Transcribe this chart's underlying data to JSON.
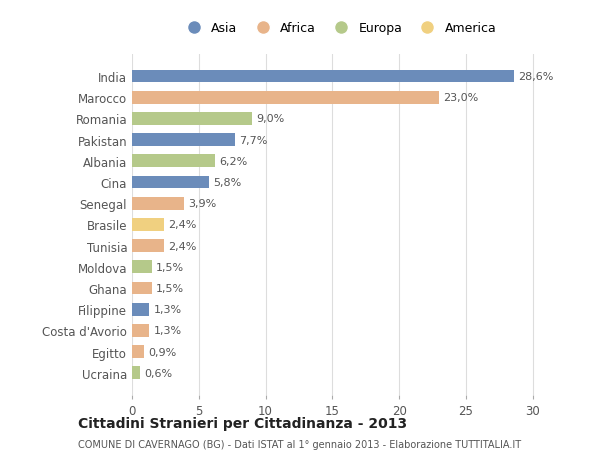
{
  "categories": [
    "India",
    "Marocco",
    "Romania",
    "Pakistan",
    "Albania",
    "Cina",
    "Senegal",
    "Brasile",
    "Tunisia",
    "Moldova",
    "Ghana",
    "Filippine",
    "Costa d'Avorio",
    "Egitto",
    "Ucraina"
  ],
  "values": [
    28.6,
    23.0,
    9.0,
    7.7,
    6.2,
    5.8,
    3.9,
    2.4,
    2.4,
    1.5,
    1.5,
    1.3,
    1.3,
    0.9,
    0.6
  ],
  "labels": [
    "28,6%",
    "23,0%",
    "9,0%",
    "7,7%",
    "6,2%",
    "5,8%",
    "3,9%",
    "2,4%",
    "2,4%",
    "1,5%",
    "1,5%",
    "1,3%",
    "1,3%",
    "0,9%",
    "0,6%"
  ],
  "continents": [
    "Asia",
    "Africa",
    "Europa",
    "Asia",
    "Europa",
    "Asia",
    "Africa",
    "America",
    "Africa",
    "Europa",
    "Africa",
    "Asia",
    "Africa",
    "Africa",
    "Europa"
  ],
  "colors": {
    "Asia": "#6b8cba",
    "Africa": "#e8b48a",
    "Europa": "#b5c98a",
    "America": "#f0d080"
  },
  "title": "Cittadini Stranieri per Cittadinanza - 2013",
  "subtitle": "COMUNE DI CAVERNAGO (BG) - Dati ISTAT al 1° gennaio 2013 - Elaborazione TUTTITALIA.IT",
  "xlim": [
    0,
    31
  ],
  "xticks": [
    0,
    5,
    10,
    15,
    20,
    25,
    30
  ],
  "background_color": "#ffffff",
  "bar_height": 0.6,
  "legend_order": [
    "Asia",
    "Africa",
    "Europa",
    "America"
  ]
}
